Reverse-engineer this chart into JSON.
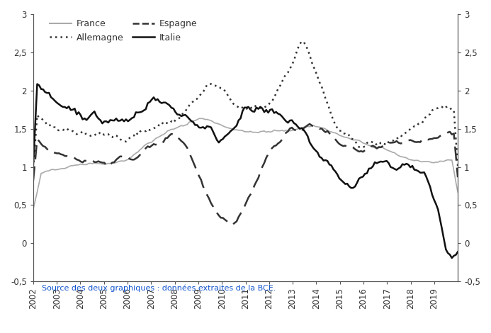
{
  "title": "",
  "source_text": "Source des deux graphiques : données extraites de la BCE.",
  "legend": [
    {
      "label": "France",
      "color": "#aaaaaa",
      "linestyle": "solid",
      "linewidth": 1.2
    },
    {
      "label": "Allemagne",
      "color": "#333333",
      "linestyle": "dotted",
      "linewidth": 1.8
    },
    {
      "label": "Espagne",
      "color": "#333333",
      "linestyle": "dashed",
      "linewidth": 1.8
    },
    {
      "label": "Italie",
      "color": "#111111",
      "linestyle": "solid",
      "linewidth": 1.8
    }
  ],
  "ylim": [
    -0.5,
    3.0
  ],
  "yticks": [
    -0.5,
    0,
    0.5,
    1,
    1.5,
    2,
    2.5,
    3
  ],
  "ytick_labels": [
    "-0,5",
    "0",
    "0,5",
    "1",
    "1,5",
    "2",
    "2,5",
    "3"
  ],
  "xlim_start": 2002.0,
  "xlim_end": 2020.0,
  "xtick_years": [
    2002,
    2003,
    2004,
    2005,
    2006,
    2007,
    2008,
    2009,
    2010,
    2011,
    2012,
    2013,
    2014,
    2015,
    2016,
    2017,
    2018,
    2019
  ],
  "background_color": "#ffffff",
  "axis_color": "#555555",
  "tick_color": "#555555",
  "label_fontsize": 9,
  "tick_fontsize": 8.5,
  "source_fontsize": 8,
  "source_color": "#1155cc"
}
